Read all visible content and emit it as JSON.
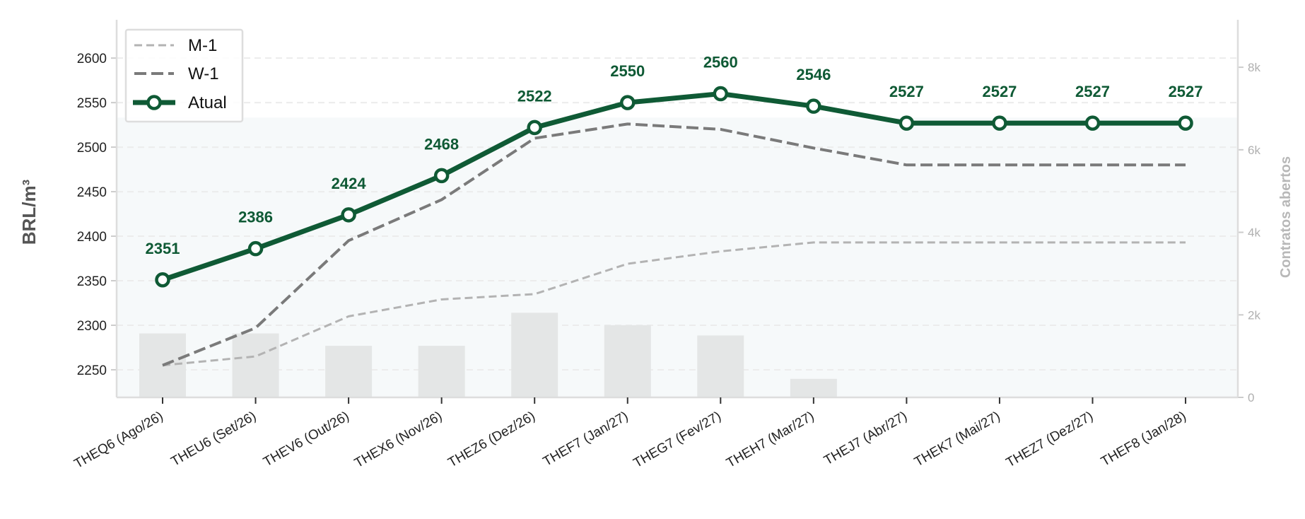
{
  "chart_data": {
    "type": "line",
    "categories": [
      "THEQ6 (Ago/26)",
      "THEU6 (Set/26)",
      "THEV6 (Out/26)",
      "THEX6 (Nov/26)",
      "THEZ6 (Dez/26)",
      "THEF7 (Jan/27)",
      "THEG7 (Fev/27)",
      "THEH7 (Mar/27)",
      "THEJ7 (Abr/27)",
      "THEK7 (Mai/27)",
      "THEZ7 (Dez/27)",
      "THEF8 (Jan/28)"
    ],
    "series": [
      {
        "name": "M-1",
        "style": "dashed-light",
        "values": [
          2255,
          2265,
          2310,
          2329,
          2335,
          2369,
          2383,
          2393,
          2393,
          2393,
          2393,
          2393
        ]
      },
      {
        "name": "W-1",
        "style": "dashed-dark",
        "values": [
          2255,
          2297,
          2395,
          2441,
          2510,
          2526,
          2520,
          2499,
          2480,
          2480,
          2480,
          2480
        ]
      },
      {
        "name": "Atual",
        "style": "solid-marker",
        "values": [
          2351,
          2386,
          2424,
          2468,
          2522,
          2550,
          2560,
          2546,
          2527,
          2527,
          2527,
          2527
        ]
      }
    ],
    "data_labels": [
      "2351",
      "2386",
      "2424",
      "2468",
      "2522",
      "2550",
      "2560",
      "2546",
      "2527",
      "2527",
      "2527",
      "2527"
    ],
    "open_interest": {
      "values": [
        1550,
        1550,
        1250,
        1250,
        2050,
        1750,
        1500,
        450,
        0,
        0,
        0,
        0
      ],
      "area_level": 6780
    },
    "ylabel": "BRL/m³",
    "ylim": [
      2219,
      2643
    ],
    "yticks": [
      2250,
      2300,
      2350,
      2400,
      2450,
      2500,
      2550,
      2600
    ],
    "y2label": "Contratos abertos",
    "y2lim": [
      0,
      9150
    ],
    "y2ticks": [
      0,
      2000,
      4000,
      6000,
      8000
    ],
    "y2ticklabels": [
      "0",
      "2k",
      "4k",
      "6k",
      "8k"
    ],
    "grid": "horizontal-dashed",
    "legend": "top-left",
    "colors": {
      "atual": "#0f5a35",
      "w1": "#7a7a7a",
      "m1": "#b3b3b3",
      "bars": "#e4e6e6",
      "area": "#f6f9fa"
    }
  }
}
